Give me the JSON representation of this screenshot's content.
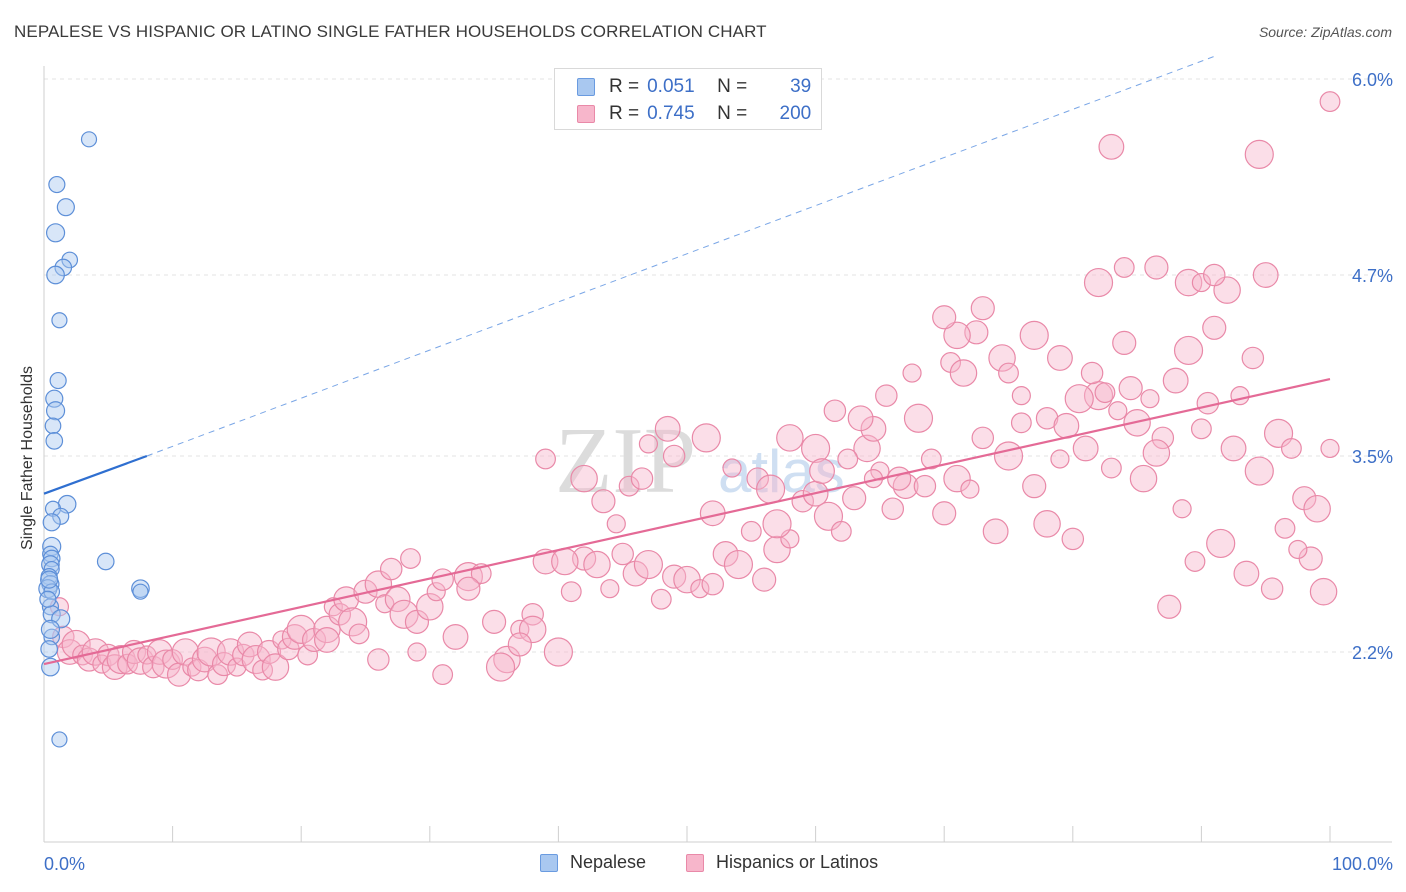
{
  "header": {
    "title": "NEPALESE VS HISPANIC OR LATINO SINGLE FATHER HOUSEHOLDS CORRELATION CHART",
    "source": "Source: ZipAtlas.com"
  },
  "watermark": {
    "zip": "ZIP",
    "atlas": "atlas"
  },
  "stats_legend": {
    "rows": [
      {
        "r_label": "R =",
        "r_value": "0.051",
        "n_label": "N =",
        "n_value": "39",
        "color": "#a9c8f0",
        "border": "#6a9be0"
      },
      {
        "r_label": "R =",
        "r_value": "0.745",
        "n_label": "N =",
        "n_value": "200",
        "color": "#f7b6cb",
        "border": "#e989a8"
      }
    ]
  },
  "bottom_legend": {
    "items": [
      {
        "label": "Nepalese",
        "color": "#a9c8f0",
        "border": "#6a9be0"
      },
      {
        "label": "Hispanics or Latinos",
        "color": "#f7b6cb",
        "border": "#e989a8"
      }
    ]
  },
  "chart_data": {
    "type": "scatter",
    "title": "NEPALESE VS HISPANIC OR LATINO SINGLE FATHER HOUSEHOLDS CORRELATION CHART",
    "ylabel": "Single Father Households",
    "xlabel": "",
    "x_tick_labels": [
      "0.0%",
      "100.0%"
    ],
    "y_tick_labels": [
      "2.2%",
      "3.5%",
      "4.7%",
      "6.0%"
    ],
    "y_ticks": [
      2.2,
      3.5,
      4.7,
      6.0
    ],
    "xlim": [
      0,
      100
    ],
    "ylim": [
      0.9,
      6.2
    ],
    "grid": "horizontal dashed",
    "colors": {
      "nepalese": "#6a9be0",
      "hispanic": "#e46a96"
    },
    "series": [
      {
        "name": "Nepalese",
        "r": 0.051,
        "n": 39,
        "trend": {
          "x": [
            0,
            8
          ],
          "y": [
            3.25,
            3.5
          ],
          "extended": {
            "x": [
              8,
              91
            ],
            "y": [
              3.5,
              6.15
            ]
          }
        },
        "points": [
          [
            3.5,
            5.6
          ],
          [
            1.0,
            5.3
          ],
          [
            1.7,
            5.15
          ],
          [
            0.9,
            4.98
          ],
          [
            2.0,
            4.8
          ],
          [
            1.5,
            4.75
          ],
          [
            0.9,
            4.7
          ],
          [
            1.2,
            4.4
          ],
          [
            1.1,
            4.0
          ],
          [
            0.8,
            3.88
          ],
          [
            0.9,
            3.8
          ],
          [
            0.7,
            3.7
          ],
          [
            0.8,
            3.6
          ],
          [
            1.8,
            3.18
          ],
          [
            0.7,
            3.15
          ],
          [
            1.3,
            3.1
          ],
          [
            0.6,
            3.06
          ],
          [
            0.6,
            2.9
          ],
          [
            0.5,
            2.85
          ],
          [
            0.6,
            2.82
          ],
          [
            0.5,
            2.78
          ],
          [
            0.6,
            2.75
          ],
          [
            0.4,
            2.7
          ],
          [
            0.5,
            2.65
          ],
          [
            0.3,
            2.62
          ],
          [
            0.6,
            2.6
          ],
          [
            4.8,
            2.8
          ],
          [
            7.5,
            2.62
          ],
          [
            7.5,
            2.6
          ],
          [
            0.5,
            2.5
          ],
          [
            0.6,
            2.45
          ],
          [
            1.3,
            2.42
          ],
          [
            0.6,
            2.3
          ],
          [
            0.4,
            2.22
          ],
          [
            0.5,
            2.1
          ],
          [
            1.2,
            1.62
          ],
          [
            0.3,
            2.55
          ],
          [
            0.4,
            2.68
          ],
          [
            0.5,
            2.35
          ]
        ]
      },
      {
        "name": "Hispanics or Latinos",
        "r": 0.745,
        "n": 200,
        "trend": {
          "x": [
            0,
            100
          ],
          "y": [
            2.12,
            4.01
          ]
        },
        "points": [
          [
            1.2,
            2.5
          ],
          [
            1.5,
            2.3
          ],
          [
            2.0,
            2.2
          ],
          [
            2.5,
            2.25
          ],
          [
            3.0,
            2.18
          ],
          [
            3.5,
            2.15
          ],
          [
            4.0,
            2.2
          ],
          [
            4.5,
            2.12
          ],
          [
            5.0,
            2.18
          ],
          [
            5.5,
            2.1
          ],
          [
            6.0,
            2.15
          ],
          [
            6.5,
            2.12
          ],
          [
            7.0,
            2.2
          ],
          [
            7.5,
            2.14
          ],
          [
            8.0,
            2.18
          ],
          [
            8.5,
            2.1
          ],
          [
            9.0,
            2.2
          ],
          [
            9.5,
            2.12
          ],
          [
            10.0,
            2.15
          ],
          [
            10.5,
            2.05
          ],
          [
            11.0,
            2.2
          ],
          [
            11.5,
            2.1
          ],
          [
            12.0,
            2.08
          ],
          [
            12.5,
            2.15
          ],
          [
            13.0,
            2.2
          ],
          [
            13.5,
            2.05
          ],
          [
            14.0,
            2.12
          ],
          [
            14.5,
            2.2
          ],
          [
            15.0,
            2.1
          ],
          [
            15.5,
            2.18
          ],
          [
            16.0,
            2.25
          ],
          [
            16.5,
            2.15
          ],
          [
            17.0,
            2.08
          ],
          [
            17.5,
            2.2
          ],
          [
            18.0,
            2.1
          ],
          [
            18.5,
            2.28
          ],
          [
            19.0,
            2.22
          ],
          [
            19.5,
            2.3
          ],
          [
            20.0,
            2.35
          ],
          [
            20.5,
            2.18
          ],
          [
            21.0,
            2.28
          ],
          [
            22.0,
            2.35
          ],
          [
            22.5,
            2.5
          ],
          [
            23.0,
            2.45
          ],
          [
            23.5,
            2.55
          ],
          [
            24.0,
            2.4
          ],
          [
            24.5,
            2.32
          ],
          [
            25.0,
            2.6
          ],
          [
            26.0,
            2.65
          ],
          [
            26.5,
            2.52
          ],
          [
            27.0,
            2.75
          ],
          [
            27.5,
            2.55
          ],
          [
            28.0,
            2.45
          ],
          [
            28.5,
            2.82
          ],
          [
            29.0,
            2.4
          ],
          [
            30.0,
            2.5
          ],
          [
            30.5,
            2.6
          ],
          [
            31.0,
            2.68
          ],
          [
            32.0,
            2.3
          ],
          [
            33.0,
            2.7
          ],
          [
            34.0,
            2.72
          ],
          [
            35.0,
            2.4
          ],
          [
            36.0,
            2.15
          ],
          [
            37.0,
            2.35
          ],
          [
            38.0,
            2.45
          ],
          [
            39.0,
            2.8
          ],
          [
            40.0,
            2.2
          ],
          [
            41.0,
            2.6
          ],
          [
            42.0,
            2.82
          ],
          [
            43.0,
            2.78
          ],
          [
            44.0,
            2.62
          ],
          [
            45.0,
            2.85
          ],
          [
            46.0,
            2.72
          ],
          [
            47.0,
            2.78
          ],
          [
            48.0,
            2.55
          ],
          [
            49.0,
            2.7
          ],
          [
            50.0,
            2.68
          ],
          [
            51.0,
            2.62
          ],
          [
            52.0,
            2.65
          ],
          [
            53.0,
            2.85
          ],
          [
            54.0,
            2.78
          ],
          [
            55.0,
            3.0
          ],
          [
            56.0,
            2.68
          ],
          [
            57.0,
            2.88
          ],
          [
            58.0,
            2.95
          ],
          [
            59.0,
            3.2
          ],
          [
            60.0,
            3.25
          ],
          [
            61.0,
            3.1
          ],
          [
            62.0,
            3.0
          ],
          [
            63.0,
            3.22
          ],
          [
            64.0,
            3.55
          ],
          [
            65.0,
            3.4
          ],
          [
            66.0,
            3.15
          ],
          [
            67.0,
            3.3
          ],
          [
            68.0,
            3.75
          ],
          [
            69.0,
            3.48
          ],
          [
            70.0,
            3.12
          ],
          [
            71.0,
            3.35
          ],
          [
            72.0,
            3.28
          ],
          [
            73.0,
            3.62
          ],
          [
            74.0,
            3.0
          ],
          [
            75.0,
            3.5
          ],
          [
            76.0,
            3.72
          ],
          [
            77.0,
            3.3
          ],
          [
            78.0,
            3.05
          ],
          [
            79.0,
            3.48
          ],
          [
            80.0,
            2.95
          ],
          [
            81.0,
            3.55
          ],
          [
            82.0,
            3.9
          ],
          [
            83.0,
            3.42
          ],
          [
            84.0,
            4.25
          ],
          [
            85.0,
            3.72
          ],
          [
            86.0,
            3.88
          ],
          [
            87.0,
            3.62
          ],
          [
            88.0,
            4.0
          ],
          [
            89.0,
            4.2
          ],
          [
            90.0,
            3.68
          ],
          [
            91.0,
            4.35
          ],
          [
            92.0,
            4.6
          ],
          [
            93.0,
            3.9
          ],
          [
            94.0,
            4.15
          ],
          [
            95.0,
            4.7
          ],
          [
            96.0,
            3.65
          ],
          [
            97.0,
            3.55
          ],
          [
            98.0,
            3.22
          ],
          [
            99.0,
            3.15
          ],
          [
            100.0,
            3.55
          ],
          [
            61.5,
            3.8
          ],
          [
            64.5,
            3.68
          ],
          [
            60.0,
            3.55
          ],
          [
            62.5,
            3.48
          ],
          [
            66.5,
            3.35
          ],
          [
            58.0,
            3.62
          ],
          [
            53.5,
            3.42
          ],
          [
            55.5,
            3.35
          ],
          [
            48.5,
            3.68
          ],
          [
            51.5,
            3.62
          ],
          [
            45.5,
            3.3
          ],
          [
            43.5,
            3.2
          ],
          [
            42.0,
            3.35
          ],
          [
            47.0,
            3.58
          ],
          [
            49.0,
            3.5
          ],
          [
            52.0,
            3.12
          ],
          [
            57.0,
            3.05
          ],
          [
            70.5,
            4.12
          ],
          [
            72.5,
            4.32
          ],
          [
            74.5,
            4.15
          ],
          [
            76.0,
            3.9
          ],
          [
            78.0,
            3.75
          ],
          [
            79.5,
            3.7
          ],
          [
            80.5,
            3.88
          ],
          [
            82.5,
            3.92
          ],
          [
            84.5,
            3.95
          ],
          [
            86.5,
            3.52
          ],
          [
            88.5,
            3.15
          ],
          [
            90.5,
            3.85
          ],
          [
            92.5,
            3.55
          ],
          [
            94.5,
            3.4
          ],
          [
            96.5,
            3.02
          ],
          [
            98.5,
            2.82
          ],
          [
            99.5,
            2.6
          ],
          [
            97.5,
            2.88
          ],
          [
            95.5,
            2.62
          ],
          [
            93.5,
            2.72
          ],
          [
            91.5,
            2.92
          ],
          [
            89.5,
            2.8
          ],
          [
            87.5,
            2.5
          ],
          [
            85.5,
            3.35
          ],
          [
            83.5,
            3.8
          ],
          [
            81.5,
            4.05
          ],
          [
            79.0,
            4.15
          ],
          [
            77.0,
            4.3
          ],
          [
            75.0,
            4.05
          ],
          [
            73.0,
            4.48
          ],
          [
            71.0,
            4.3
          ],
          [
            67.5,
            4.05
          ],
          [
            65.5,
            3.9
          ],
          [
            63.5,
            3.75
          ],
          [
            82.0,
            4.65
          ],
          [
            84.0,
            4.75
          ],
          [
            86.5,
            4.75
          ],
          [
            89.0,
            4.65
          ],
          [
            90.0,
            4.65
          ],
          [
            91.0,
            4.7
          ],
          [
            83.0,
            5.55
          ],
          [
            94.5,
            5.5
          ],
          [
            100.0,
            5.85
          ],
          [
            70.0,
            4.42
          ],
          [
            71.5,
            4.05
          ],
          [
            64.5,
            3.35
          ],
          [
            68.5,
            3.3
          ],
          [
            60.5,
            3.4
          ],
          [
            56.5,
            3.28
          ],
          [
            39.0,
            3.48
          ],
          [
            33.0,
            2.62
          ],
          [
            38.0,
            2.35
          ],
          [
            29.0,
            2.2
          ],
          [
            26.0,
            2.15
          ],
          [
            22.0,
            2.28
          ],
          [
            35.5,
            2.1
          ],
          [
            31.0,
            2.05
          ],
          [
            37.0,
            2.25
          ],
          [
            40.5,
            2.8
          ],
          [
            44.5,
            3.05
          ],
          [
            46.5,
            3.35
          ]
        ]
      }
    ]
  }
}
